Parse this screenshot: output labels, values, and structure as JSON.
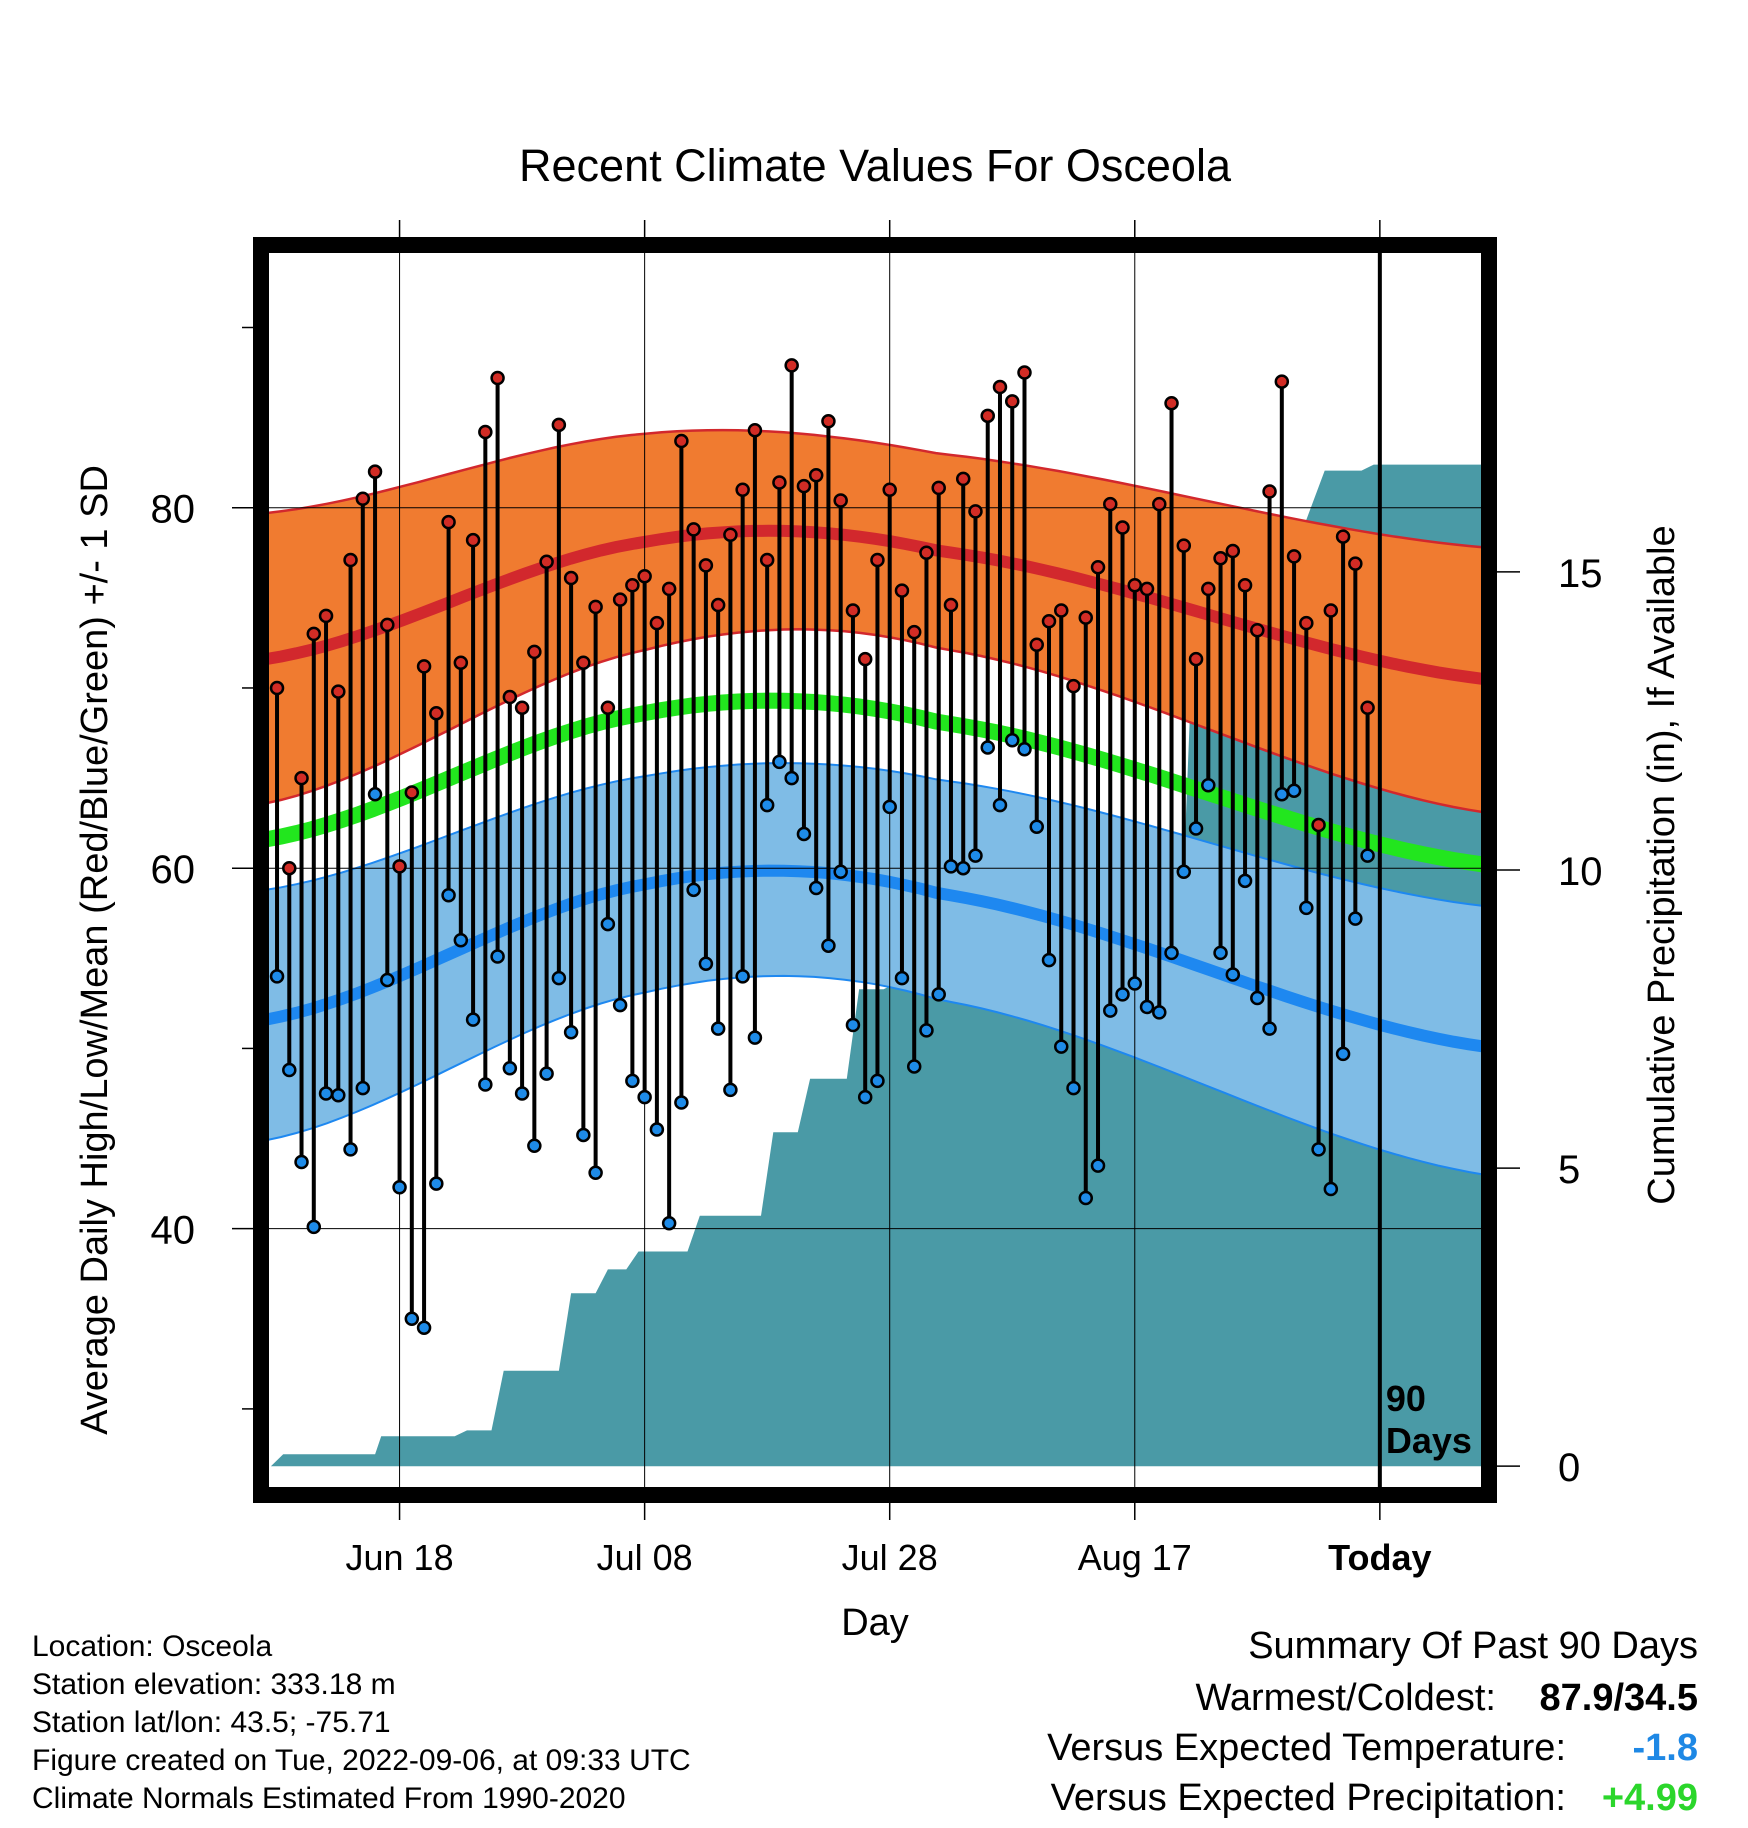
{
  "chart_data": {
    "type": "line",
    "title": "Recent Climate Values For Osceola",
    "xlabel": "Day",
    "ylabel": "Average Daily High/Low/Mean (Red/Blue/Green) +/- 1 SD",
    "y2label": "Cumulative Precipitation (in), If Available",
    "xticks": [
      "Jun 18",
      "Jul 08",
      "Jul 28",
      "Aug 17",
      "Today"
    ],
    "xtick_days": [
      10,
      30,
      50,
      70,
      90
    ],
    "xlim": [
      -0.9,
      98.5
    ],
    "today_day": 90,
    "today_text": [
      "90",
      "Days"
    ],
    "ylim": [
      25.5,
      94.3
    ],
    "yticks": [
      40,
      60,
      80
    ],
    "y2lim": [
      -0.4,
      20.4
    ],
    "y2ticks": [
      0,
      5,
      10,
      15
    ],
    "normal_high": {
      "mean": [
        71.6,
        78.1,
        77.6,
        70.5
      ],
      "upper": [
        79.7,
        84.1,
        83.0,
        77.8
      ],
      "lower": [
        63.6,
        72.1,
        72.2,
        63.1
      ]
    },
    "normal_low": {
      "mean": [
        51.6,
        59.1,
        58.6,
        50.1
      ],
      "upper": [
        58.8,
        65.1,
        64.9,
        57.9
      ],
      "lower": [
        44.9,
        53.1,
        52.7,
        43.0
      ]
    },
    "normal_mean": [
      61.6,
      68.6,
      68.1,
      60.2
    ],
    "highs": [
      70.0,
      60.0,
      65.0,
      73.0,
      74.0,
      69.8,
      77.1,
      80.5,
      82.0,
      73.5,
      60.1,
      64.2,
      71.2,
      68.6,
      79.2,
      71.4,
      78.2,
      84.2,
      87.2,
      69.5,
      68.9,
      72.0,
      77.0,
      84.6,
      76.1,
      71.4,
      74.5,
      68.9,
      74.9,
      75.7,
      76.2,
      73.6,
      75.5,
      83.7,
      78.8,
      76.8,
      74.6,
      78.5,
      81.0,
      84.3,
      77.1,
      81.4,
      87.9,
      81.2,
      81.8,
      84.8,
      80.4,
      74.3,
      71.6,
      77.1,
      81.0,
      75.4,
      73.1,
      77.5,
      81.1,
      74.6,
      81.6,
      79.8,
      85.1,
      86.7,
      85.9,
      87.5,
      72.4,
      73.7,
      74.3,
      70.1,
      73.9,
      76.7,
      80.2,
      78.9,
      75.7,
      75.5,
      80.2,
      85.8,
      77.9,
      71.6,
      75.5,
      77.2,
      77.6,
      75.7,
      73.2,
      80.9,
      87.0,
      77.3,
      73.6,
      62.4,
      74.3,
      78.4,
      76.9,
      68.9
    ],
    "lows": [
      54.0,
      48.8,
      43.7,
      40.1,
      47.5,
      47.4,
      44.4,
      47.8,
      64.1,
      53.8,
      42.3,
      35.0,
      34.5,
      42.5,
      58.5,
      56.0,
      51.6,
      48.0,
      55.1,
      48.9,
      47.5,
      44.6,
      48.6,
      53.9,
      50.9,
      45.2,
      43.1,
      56.9,
      52.4,
      48.2,
      47.3,
      45.5,
      40.3,
      47.0,
      58.8,
      54.7,
      51.1,
      47.7,
      54.0,
      50.6,
      63.5,
      65.9,
      65.0,
      61.9,
      58.9,
      55.7,
      59.8,
      51.3,
      47.3,
      48.2,
      63.4,
      53.9,
      49.0,
      51.0,
      53.0,
      60.1,
      60.0,
      60.7,
      66.7,
      63.5,
      67.1,
      66.6,
      62.3,
      54.9,
      50.1,
      47.8,
      41.7,
      43.5,
      52.1,
      53.0,
      53.6,
      52.3,
      52.0,
      55.3,
      59.8,
      62.2,
      64.6,
      55.3,
      54.1,
      59.3,
      52.8,
      51.1,
      64.1,
      64.3,
      57.8,
      44.4,
      42.2,
      49.7,
      57.2,
      60.7
    ],
    "precip": [
      [
        -0.5,
        0
      ],
      [
        0.5,
        0.2
      ],
      [
        8,
        0.2
      ],
      [
        8.5,
        0.5
      ],
      [
        14.5,
        0.5
      ],
      [
        15.5,
        0.6
      ],
      [
        17.5,
        0.6
      ],
      [
        18.5,
        1.6
      ],
      [
        23,
        1.6
      ],
      [
        24,
        2.9
      ],
      [
        26,
        2.9
      ],
      [
        27,
        3.3
      ],
      [
        28.5,
        3.3
      ],
      [
        29.5,
        3.6
      ],
      [
        33.5,
        3.6
      ],
      [
        34.5,
        4.2
      ],
      [
        39.5,
        4.2
      ],
      [
        40.5,
        5.6
      ],
      [
        42.5,
        5.6
      ],
      [
        43.5,
        6.5
      ],
      [
        46.5,
        6.5
      ],
      [
        47.5,
        8.0
      ],
      [
        49.5,
        8.0
      ],
      [
        51.5,
        8.2
      ],
      [
        58.5,
        8.2
      ],
      [
        59.5,
        8.2
      ],
      [
        60.5,
        8.3
      ],
      [
        62.5,
        8.3
      ],
      [
        63.5,
        8.8
      ],
      [
        64.5,
        8.8
      ],
      [
        65.5,
        9.1
      ],
      [
        68.5,
        9.1
      ],
      [
        69.5,
        9.2
      ],
      [
        70.5,
        9.3
      ],
      [
        73.5,
        9.3
      ],
      [
        74,
        10.0
      ],
      [
        74.5,
        12.6
      ],
      [
        75.5,
        13.1
      ],
      [
        76.5,
        13.7
      ],
      [
        77.5,
        14.2
      ],
      [
        79.5,
        14.2
      ],
      [
        80.5,
        15.1
      ],
      [
        82.5,
        15.1
      ],
      [
        83.5,
        15.6
      ],
      [
        85.5,
        16.7
      ],
      [
        88.5,
        16.7
      ],
      [
        89.5,
        16.8
      ],
      [
        98.5,
        16.8
      ]
    ]
  },
  "colors": {
    "high_band": "#F07B30",
    "high_line": "#D2282D",
    "low_band": "#7FBCE6",
    "low_line": "#1E88F0",
    "mean_line": "#22E61E",
    "precip_fill": "#4A9AA6",
    "high_dot": "#D22C25",
    "low_dot": "#1E8BE8",
    "temp_anomaly": "#1E88E5",
    "precip_anomaly": "#2BD62B"
  },
  "info": {
    "location": "Location: Osceola",
    "elevation": "Station elevation: 333.18 m",
    "latlon": "Station lat/lon: 43.5; -75.71",
    "created": "Figure created on Tue, 2022-09-06, at 09:33 UTC",
    "normals": "Climate Normals Estimated From 1990-2020"
  },
  "summary": {
    "title": "Summary Of Past 90 Days",
    "warmest_label": "Warmest/Coldest:",
    "warmest_value": "87.9/34.5",
    "temp_label": "Versus Expected Temperature:",
    "temp_value": "-1.8",
    "precip_label": "Versus Expected Precipitation:",
    "precip_value": "+4.99"
  }
}
